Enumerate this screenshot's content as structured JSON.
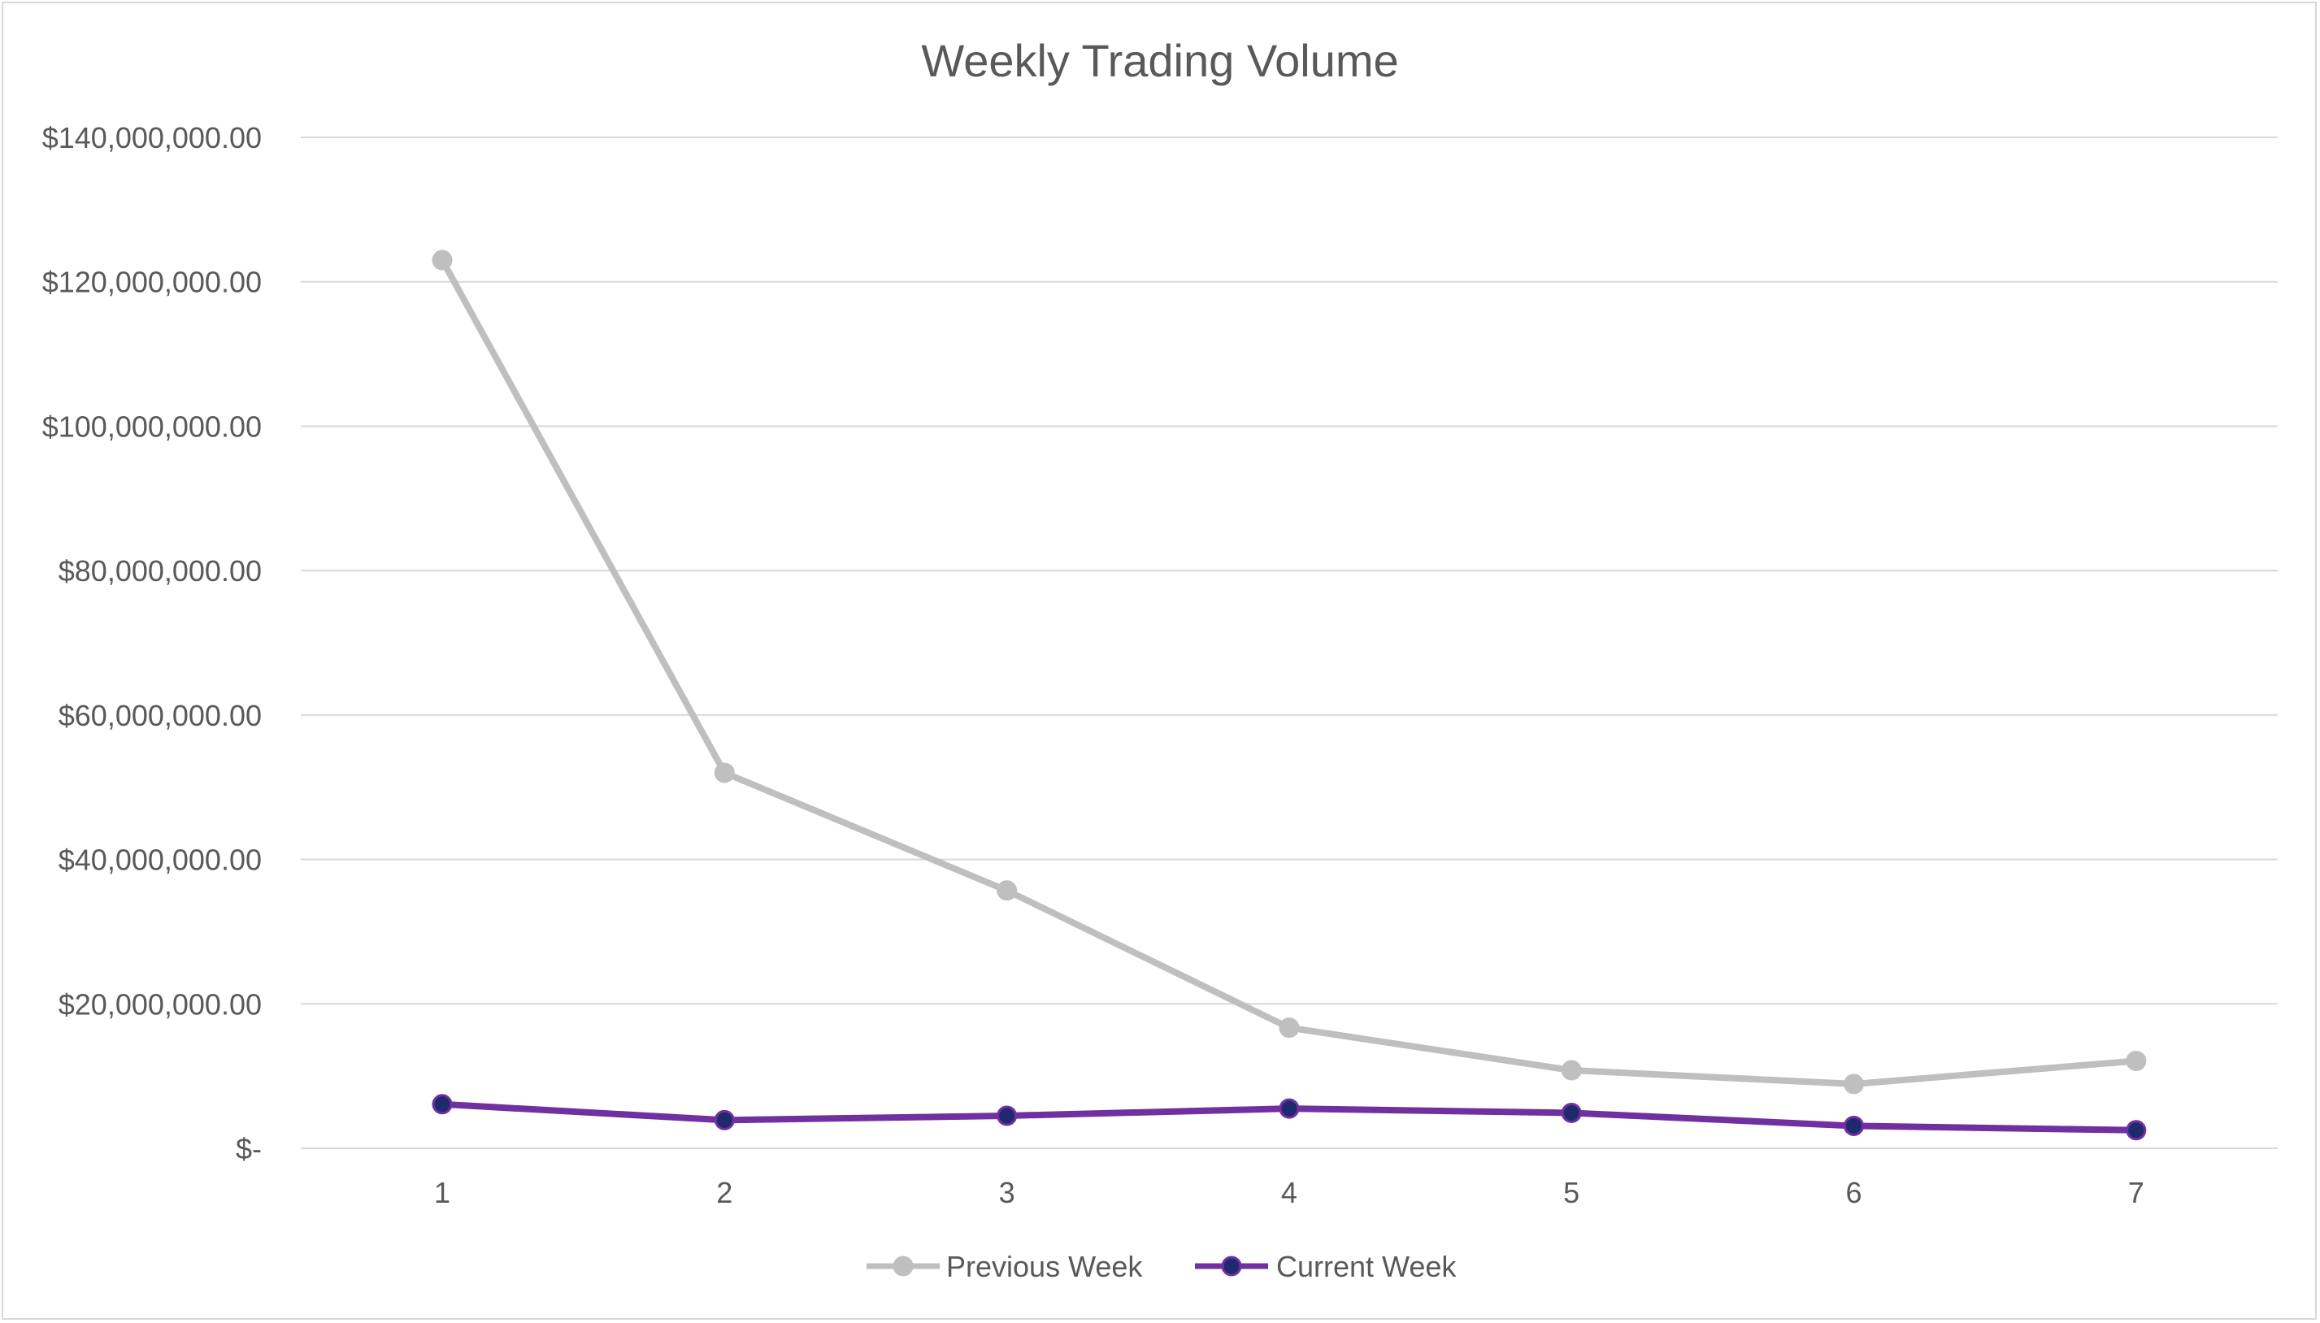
{
  "chart_data": {
    "type": "line",
    "title": "Weekly Trading Volume",
    "xlabel": "",
    "ylabel": "",
    "categories": [
      "1",
      "2",
      "3",
      "4",
      "5",
      "6",
      "7"
    ],
    "ylim": [
      0,
      140000000
    ],
    "yticks": [
      0,
      20000000,
      40000000,
      60000000,
      80000000,
      100000000,
      120000000,
      140000000
    ],
    "ytick_labels": [
      "$-",
      "$20,000,000.00",
      "$40,000,000.00",
      "$60,000,000.00",
      "$80,000,000.00",
      "$100,000,000.00",
      "$120,000,000.00",
      "$140,000,000.00"
    ],
    "grid": true,
    "legend_position": "bottom",
    "series": [
      {
        "name": "Previous Week",
        "color": "#bfbfbf",
        "marker_color": "#bfbfbf",
        "values": [
          123000000,
          52000000,
          35700000,
          16700000,
          10800000,
          8900000,
          12100000
        ]
      },
      {
        "name": "Current Week",
        "color": "#7030a0",
        "marker_color": "#1f2a6e",
        "values": [
          6100000,
          3900000,
          4500000,
          5500000,
          4900000,
          3100000,
          2500000
        ]
      }
    ]
  }
}
